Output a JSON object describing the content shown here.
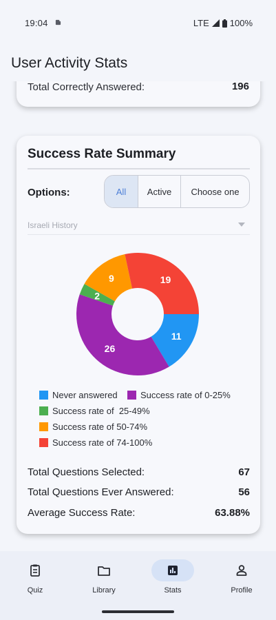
{
  "status_bar": {
    "time": "19:04",
    "network": "LTE",
    "battery": "100%"
  },
  "app_bar": {
    "title": "User Activity Stats"
  },
  "top_card": {
    "label": "Total Correctly Answered:",
    "value": "196"
  },
  "summary": {
    "title": "Success Rate Summary",
    "options_label": "Options:",
    "segments": [
      "All",
      "Active",
      "Choose one"
    ],
    "selected_segment": "All",
    "select_value": "Israeli History",
    "chart_data": {
      "type": "pie",
      "slices": [
        {
          "label": "Never answered",
          "value": 11,
          "color": "#2196f3"
        },
        {
          "label": "Success rate of 0-25%",
          "value": 26,
          "color": "#9c27b0"
        },
        {
          "label": "Success rate of  25-49%",
          "value": 2,
          "color": "#4caf50"
        },
        {
          "label": "Success rate of 50-74%",
          "value": 9,
          "color": "#ff9800"
        },
        {
          "label": "Success rate of 74-100%",
          "value": 19,
          "color": "#f44336"
        }
      ]
    },
    "stats": [
      {
        "label": "Total Questions Selected:",
        "value": "67"
      },
      {
        "label": "Total Questions Ever Answered:",
        "value": "56"
      },
      {
        "label": "Average Success Rate:",
        "value": "63.88%"
      }
    ]
  },
  "nav": {
    "items": [
      {
        "label": "Quiz",
        "icon": "quiz-icon"
      },
      {
        "label": "Library",
        "icon": "folder-icon"
      },
      {
        "label": "Stats",
        "icon": "bar-chart-icon"
      },
      {
        "label": "Profile",
        "icon": "person-icon"
      }
    ],
    "active": "Stats"
  }
}
